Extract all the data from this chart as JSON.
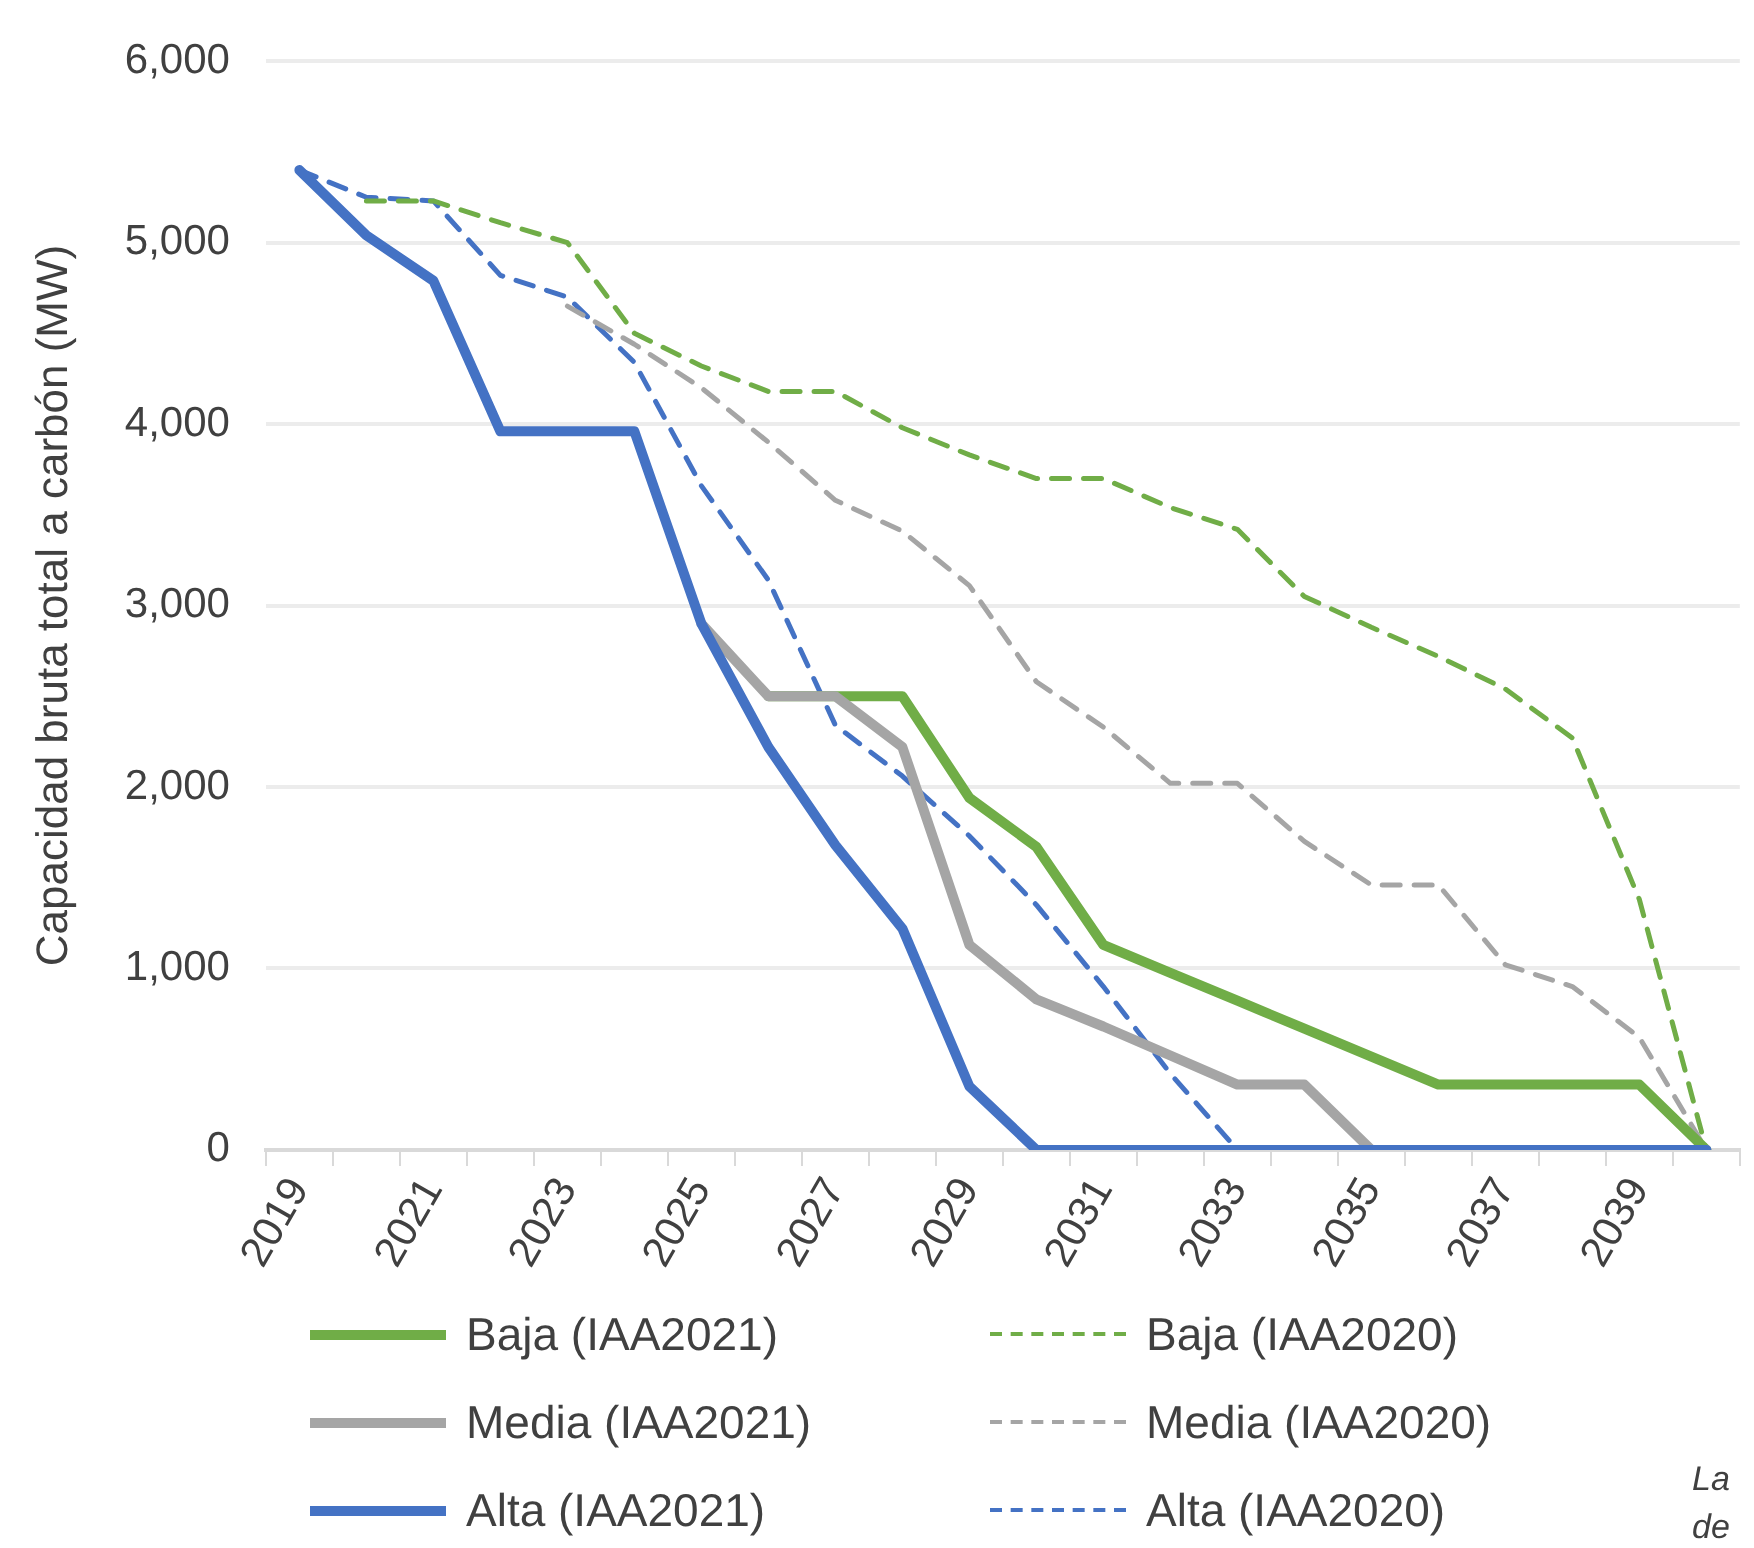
{
  "chart_data": {
    "type": "line",
    "ylabel": "Capacidad bruta total a carbón (MW)",
    "categories": [
      "2019",
      null,
      "2021",
      null,
      "2023",
      null,
      "2025",
      null,
      "2027",
      null,
      "2029",
      null,
      "2031",
      null,
      "2033",
      null,
      "2035",
      null,
      "2037",
      null,
      "2039",
      null
    ],
    "ylim": [
      0,
      6000
    ],
    "yticks": [
      0,
      {
        "value": 1000,
        "label": "1,000"
      },
      {
        "value": 2000,
        "label": "2,000"
      },
      {
        "value": 3000,
        "label": "3,000"
      },
      {
        "value": 4000,
        "label": "4,000"
      },
      {
        "value": 5000,
        "label": "5,000"
      },
      {
        "value": 6000,
        "label": "6,000"
      }
    ],
    "grid": "y",
    "legend": "bottom",
    "marker": "none",
    "series": [
      {
        "name": "Baja (IAA2021)",
        "color": "#70ad47",
        "line_style": "solid",
        "values": [
          null,
          null,
          null,
          null,
          null,
          null,
          null,
          2500,
          2500,
          2500,
          1940,
          1670,
          1130,
          976,
          822,
          668,
          514,
          360,
          360,
          360,
          360,
          0
        ]
      },
      {
        "name": "Baja (IAA2020)",
        "color": "#70ad47",
        "line_style": "dashed",
        "values": [
          null,
          5230,
          5230,
          5110,
          5000,
          4500,
          4320,
          4180,
          4180,
          3980,
          3830,
          3700,
          3700,
          3540,
          3420,
          3050,
          2880,
          2720,
          2540,
          2270,
          1380,
          0
        ]
      },
      {
        "name": "Media (IAA2021)",
        "color": "#a5a5a5",
        "line_style": "solid",
        "values": [
          null,
          null,
          null,
          null,
          null,
          null,
          2900,
          2500,
          2500,
          2220,
          1130,
          830,
          680,
          520,
          360,
          360,
          0,
          0,
          0,
          0,
          0,
          0
        ]
      },
      {
        "name": "Media (IAA2020)",
        "color": "#a5a5a5",
        "line_style": "dashed",
        "values": [
          null,
          null,
          null,
          null,
          4650,
          4440,
          4200,
          3900,
          3580,
          3410,
          3110,
          2580,
          2330,
          2020,
          2020,
          1700,
          1460,
          1460,
          1020,
          900,
          620,
          0
        ]
      },
      {
        "name": "Alta (IAA2021)",
        "color": "#4472c4",
        "line_style": "solid",
        "values": [
          5400,
          5040,
          4790,
          3960,
          3960,
          3960,
          2900,
          2220,
          1680,
          1220,
          350,
          0,
          0,
          0,
          0,
          0,
          0,
          0,
          0,
          0,
          0,
          0
        ]
      },
      {
        "name": "Alta (IAA2020)",
        "color": "#4472c4",
        "line_style": "dashed",
        "values": [
          5400,
          5250,
          5230,
          4820,
          4700,
          4340,
          3660,
          3140,
          2340,
          2060,
          1730,
          1350,
          900,
          420,
          0,
          null,
          null,
          null,
          null,
          null,
          null,
          null
        ]
      }
    ],
    "annotations": [
      "La de"
    ]
  }
}
